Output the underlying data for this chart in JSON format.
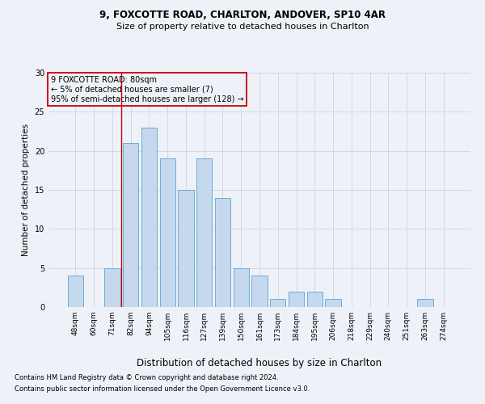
{
  "title1": "9, FOXCOTTE ROAD, CHARLTON, ANDOVER, SP10 4AR",
  "title2": "Size of property relative to detached houses in Charlton",
  "xlabel": "Distribution of detached houses by size in Charlton",
  "ylabel": "Number of detached properties",
  "categories": [
    "48sqm",
    "60sqm",
    "71sqm",
    "82sqm",
    "94sqm",
    "105sqm",
    "116sqm",
    "127sqm",
    "139sqm",
    "150sqm",
    "161sqm",
    "173sqm",
    "184sqm",
    "195sqm",
    "206sqm",
    "218sqm",
    "229sqm",
    "240sqm",
    "251sqm",
    "263sqm",
    "274sqm"
  ],
  "values": [
    4,
    0,
    5,
    21,
    23,
    19,
    15,
    19,
    14,
    5,
    4,
    1,
    2,
    2,
    1,
    0,
    0,
    0,
    0,
    1,
    0
  ],
  "bar_color": "#c5d8ed",
  "bar_edge_color": "#6aaed6",
  "grid_color": "#d0d8e8",
  "background_color": "#eef2f8",
  "vline_color": "#cc0000",
  "annotation_box_text": "9 FOXCOTTE ROAD: 80sqm\n← 5% of detached houses are smaller (7)\n95% of semi-detached houses are larger (128) →",
  "annotation_box_color": "#cc0000",
  "footer1": "Contains HM Land Registry data © Crown copyright and database right 2024.",
  "footer2": "Contains public sector information licensed under the Open Government Licence v3.0.",
  "ylim": [
    0,
    30
  ],
  "yticks": [
    0,
    5,
    10,
    15,
    20,
    25,
    30
  ],
  "title1_fontsize": 8.5,
  "title2_fontsize": 8.0,
  "ylabel_fontsize": 7.5,
  "xlabel_fontsize": 8.5,
  "tick_fontsize": 6.5,
  "footer_fontsize": 6.0,
  "ann_fontsize": 7.0
}
